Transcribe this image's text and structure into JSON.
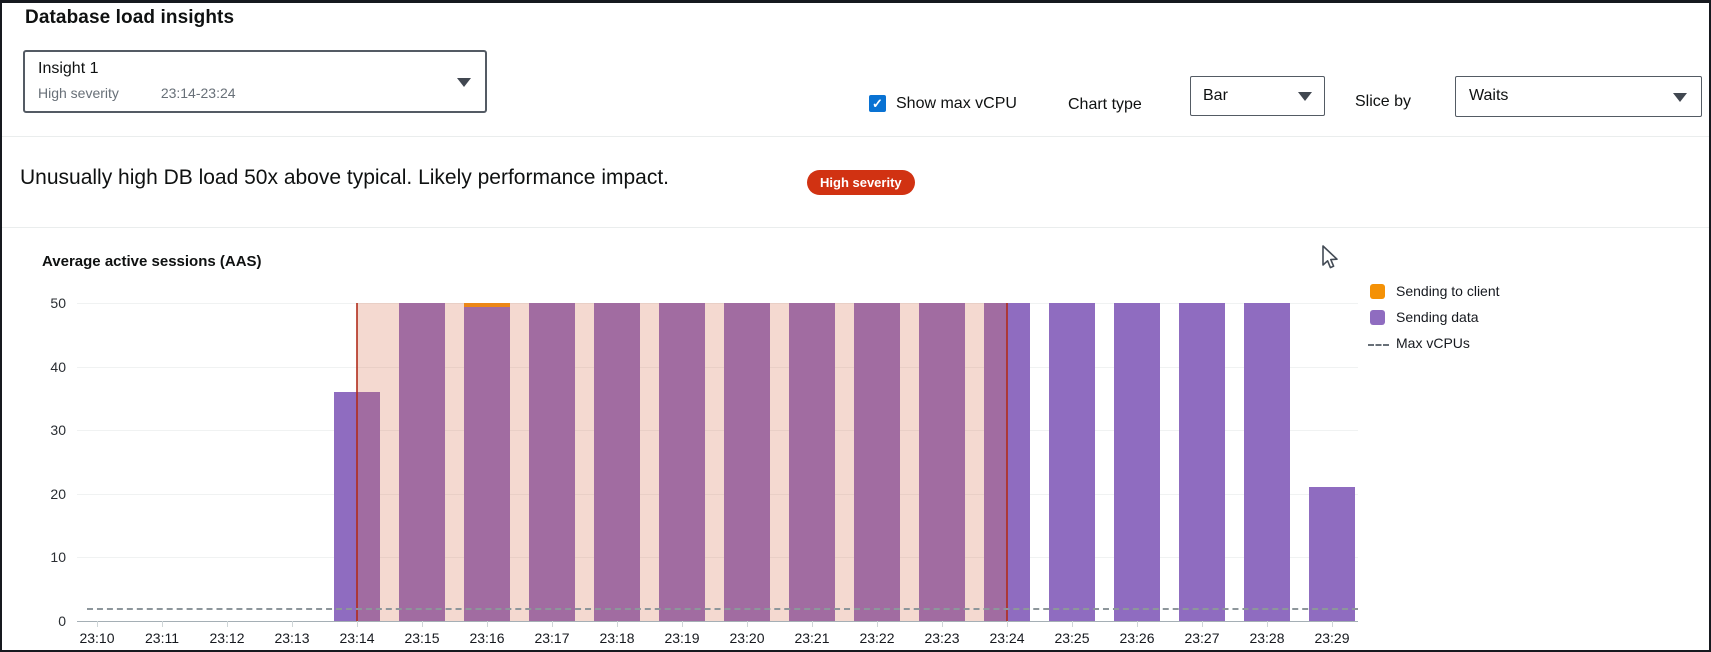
{
  "header": {
    "title": "Database load insights",
    "insight_select": {
      "name": "Insight 1",
      "severity": "High severity",
      "time_range": "23:14-23:24"
    },
    "show_max_vcpu_label": "Show max vCPU",
    "chart_type_label": "Chart type",
    "chart_type_value": "Bar",
    "slice_by_label": "Slice by",
    "slice_by_value": "Waits"
  },
  "alert": {
    "message": "Unusually high DB load 50x above typical. Likely performance impact.",
    "badge": "High severity",
    "badge_color": "#d13212"
  },
  "chart_data": {
    "type": "bar",
    "title": "Average active sessions (AAS)",
    "categories": [
      "23:10",
      "23:11",
      "23:12",
      "23:13",
      "23:14",
      "23:15",
      "23:16",
      "23:17",
      "23:18",
      "23:19",
      "23:20",
      "23:21",
      "23:22",
      "23:23",
      "23:24",
      "23:25",
      "23:26",
      "23:27",
      "23:28",
      "23:29"
    ],
    "series": [
      {
        "name": "Sending to client",
        "color": "#f49106",
        "values": [
          0,
          0,
          0,
          0,
          0,
          0,
          0.7,
          0,
          0,
          0,
          0,
          0,
          0,
          0,
          0,
          0,
          0,
          0,
          0,
          0
        ]
      },
      {
        "name": "Sending data",
        "color": "#8f6cc0",
        "values": [
          0,
          0,
          0,
          0,
          36,
          50,
          49.3,
          50,
          50,
          50,
          50,
          50,
          50,
          50,
          50,
          50,
          50,
          50,
          50,
          21
        ]
      }
    ],
    "max_vcpus": {
      "label": "Max vCPUs",
      "value": 2
    },
    "ylim": [
      0,
      50
    ],
    "yticks": [
      0,
      10,
      20,
      30,
      40,
      50
    ],
    "xlabel": "",
    "ylabel": "Average active sessions (AAS)",
    "grid": "horizontal",
    "legend_position": "right",
    "insight_window": {
      "start": "23:14",
      "end": "23:24"
    }
  },
  "colors": {
    "checkbox_blue": "#0972d3",
    "badge_red": "#d13212",
    "bar_purple": "#8f6cc0",
    "bar_orange": "#f49106",
    "insight_shade": "rgba(213,108,73,0.26)",
    "insight_line": "rgba(176,44,26,0.8)",
    "max_vcpu_line": "#8d969b"
  }
}
